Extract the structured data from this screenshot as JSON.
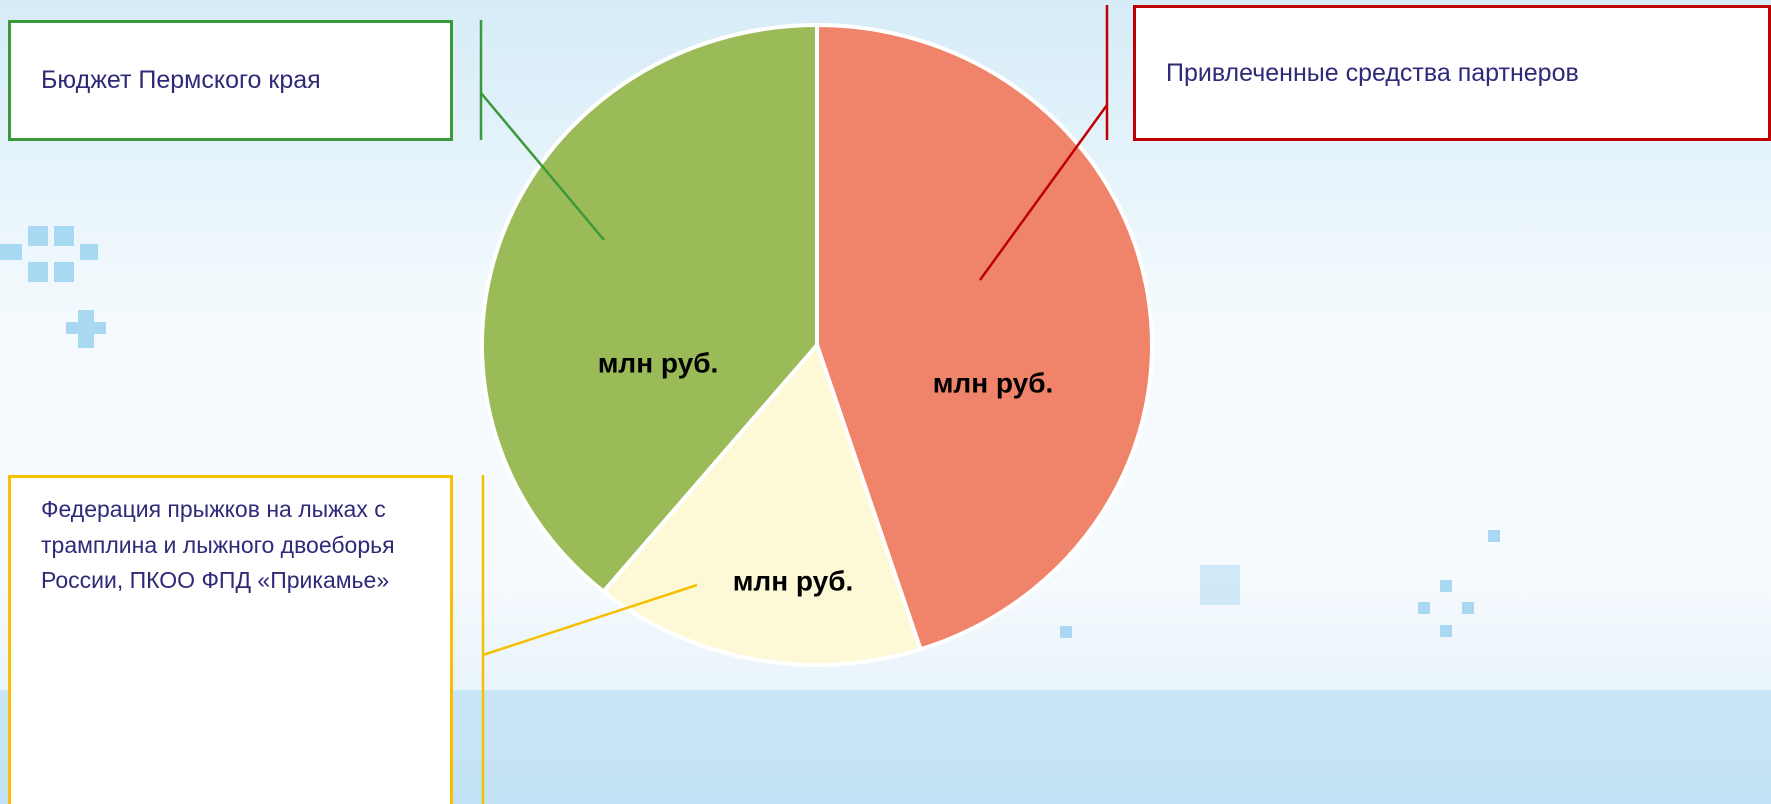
{
  "chart_data": {
    "type": "pie",
    "categories": [
      "Привлеченные средства партнеров",
      "Федерация прыжков на лыжах с трамплина и лыжного двоеборья России, ПКОО ФПД «Прикамье»",
      "Бюджет Пермского края"
    ],
    "values": [
      45,
      16,
      39
    ],
    "value_labels": [
      "млн руб.",
      "млн руб.",
      "млн руб."
    ],
    "colors": [
      "#f0846a",
      "#fdf9d6",
      "#9bbb59"
    ]
  }
}
